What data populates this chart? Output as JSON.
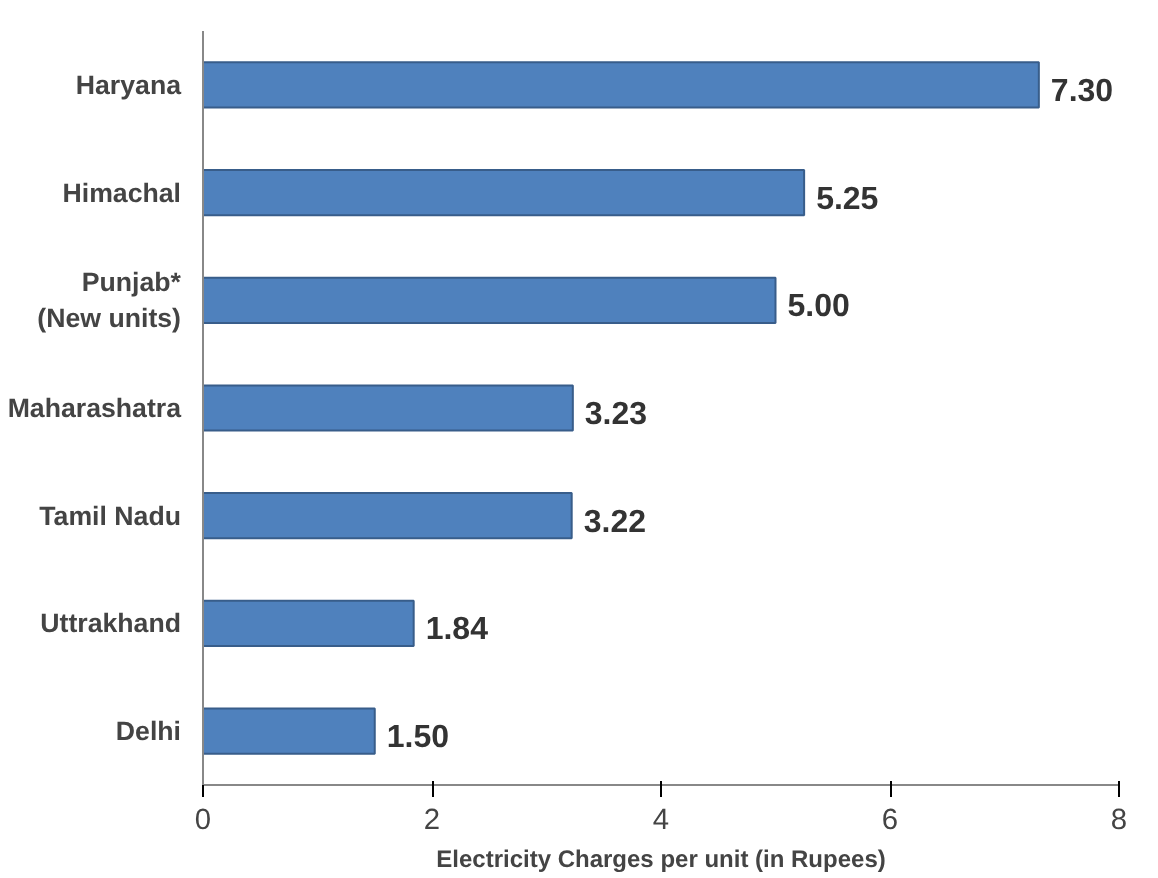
{
  "chart_data": {
    "type": "bar",
    "orientation": "horizontal",
    "xlabel": "Electricity Charges per unit (in Rupees)",
    "categories": [
      "Haryana",
      "Himachal",
      "Punjab*\n(New units)",
      "Maharashatra",
      "Tamil Nadu",
      "Uttrakhand",
      "Delhi"
    ],
    "values": [
      7.3,
      5.25,
      5.0,
      3.23,
      3.22,
      1.84,
      1.5
    ],
    "value_labels": [
      "7.30",
      "5.25",
      "5.00",
      "3.23",
      "3.22",
      "1.84",
      "1.50"
    ],
    "color": "#4f81bd",
    "xlim": [
      0,
      8
    ],
    "xticks": [
      0,
      2,
      4,
      6,
      8
    ]
  }
}
